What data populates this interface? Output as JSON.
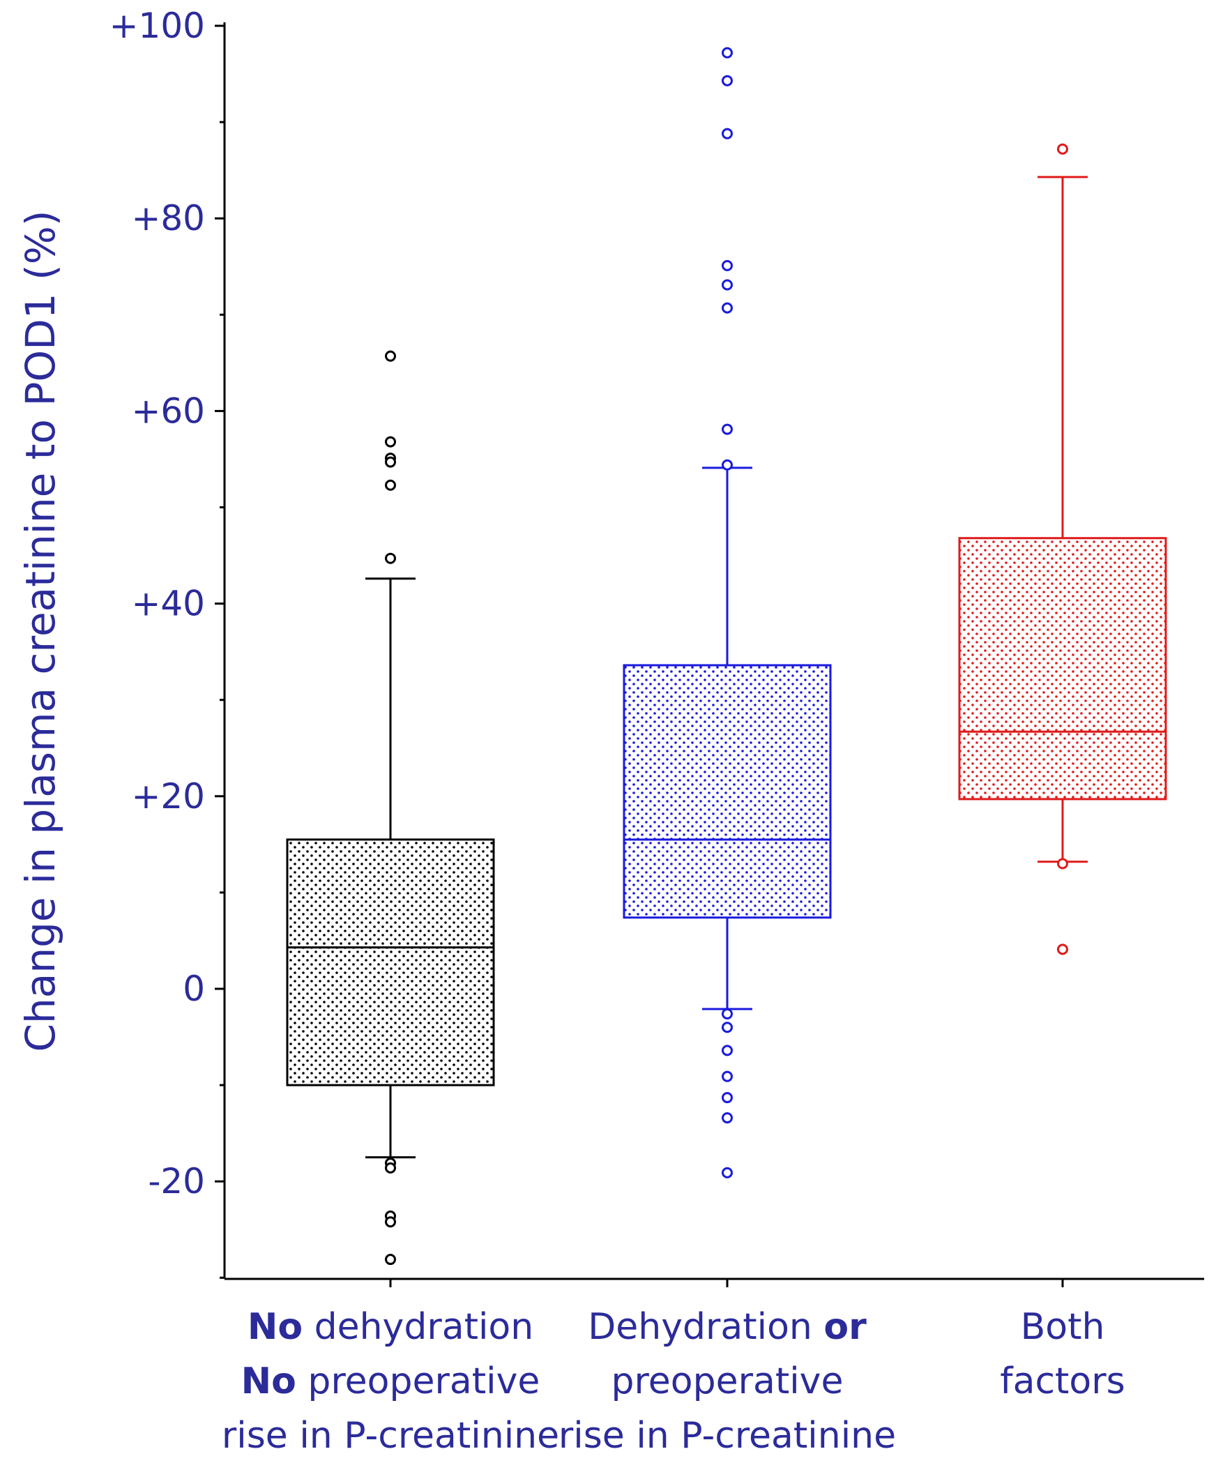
{
  "chart_data": {
    "type": "boxplot",
    "ylabel": "Change in plasma creatinine to POD1 (%)",
    "ylim": [
      -30,
      100
    ],
    "yticks": [
      {
        "value": 100,
        "label": "+100"
      },
      {
        "value": 80,
        "label": "+80"
      },
      {
        "value": 60,
        "label": "+60"
      },
      {
        "value": 40,
        "label": "+40"
      },
      {
        "value": 20,
        "label": "+20"
      },
      {
        "value": 0,
        "label": "0"
      },
      {
        "value": -20,
        "label": "-20"
      }
    ],
    "grid": false,
    "groups": [
      {
        "name": "no-factors",
        "label_lines": [
          [
            {
              "text": "No",
              "bold": true
            },
            {
              "text": " dehydration",
              "bold": false
            }
          ],
          [
            {
              "text": "No",
              "bold": true
            },
            {
              "text": " preoperative",
              "bold": false
            }
          ],
          [
            {
              "text": "rise in P-creatinine",
              "bold": false
            }
          ]
        ],
        "color": "#000000",
        "whisker_low": -17.5,
        "q1": -10,
        "median": 4.3,
        "q3": 15.5,
        "whisker_high": 42.6,
        "outliers": [
          65.7,
          56.8,
          55.1,
          54.7,
          52.3,
          44.7,
          -18.1,
          -18.6,
          -23.6,
          -24.2,
          -28.1
        ]
      },
      {
        "name": "one-factor",
        "label_lines": [
          [
            {
              "text": "Dehydration ",
              "bold": false
            },
            {
              "text": "or",
              "bold": true
            }
          ],
          [
            {
              "text": "preoperative",
              "bold": false
            }
          ],
          [
            {
              "text": "rise in P-creatinine",
              "bold": false
            }
          ]
        ],
        "color": "#1a1adf",
        "whisker_low": -2.1,
        "q1": 7.4,
        "median": 15.5,
        "q3": 33.6,
        "whisker_high": 54.1,
        "outliers": [
          97.2,
          94.3,
          88.8,
          75.1,
          73.1,
          70.7,
          58.1,
          54.4,
          -2.6,
          -4,
          -6.4,
          -9.1,
          -11.3,
          -13.4,
          -19.1
        ]
      },
      {
        "name": "both-factors",
        "label_lines": [
          [
            {
              "text": "Both",
              "bold": false
            }
          ],
          [
            {
              "text": "factors",
              "bold": false
            }
          ]
        ],
        "color": "#e01b1b",
        "whisker_low": 13.2,
        "q1": 19.7,
        "median": 26.7,
        "q3": 46.8,
        "whisker_high": 84.3,
        "outliers": [
          87.2,
          13,
          4.1
        ]
      }
    ]
  }
}
